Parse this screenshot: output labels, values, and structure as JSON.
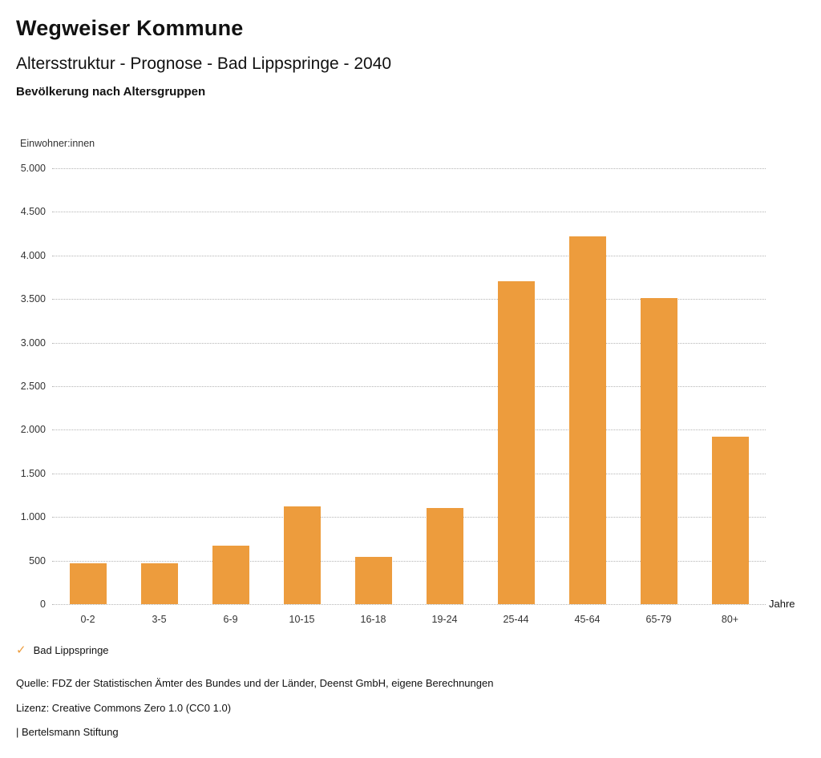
{
  "header": {
    "title": "Wegweiser Kommune",
    "subtitle": "Altersstruktur - Prognose - Bad Lippspringe - 2040",
    "chart_heading": "Bevölkerung nach Altersgruppen"
  },
  "chart_data": {
    "type": "bar",
    "title": "Bevölkerung nach Altersgruppen",
    "ylabel": "Einwohner:innen",
    "xlabel": "Jahre",
    "categories": [
      "0-2",
      "3-5",
      "6-9",
      "10-15",
      "16-18",
      "19-24",
      "25-44",
      "45-64",
      "65-79",
      "80+"
    ],
    "values": [
      470,
      470,
      675,
      1120,
      545,
      1100,
      3700,
      4220,
      3510,
      1920
    ],
    "series_name": "Bad Lippspringe",
    "ylim": [
      0,
      5000
    ],
    "ytick_step": 500,
    "ytick_labels": [
      "0",
      "500",
      "1.000",
      "1.500",
      "2.000",
      "2.500",
      "3.000",
      "3.500",
      "4.000",
      "4.500",
      "5.000"
    ],
    "grid": "horizontal-dotted",
    "legend_position": "bottom-left",
    "bar_color": "#ED9C3D"
  },
  "legend": {
    "check_icon": "✓",
    "label": "Bad Lippspringe"
  },
  "footer": {
    "source": "Quelle: FDZ der Statistischen Ämter des Bundes und der Länder, Deenst GmbH, eigene Berechnungen",
    "license": "Lizenz: Creative Commons Zero 1.0 (CC0 1.0)",
    "attribution": "| Bertelsmann Stiftung"
  }
}
